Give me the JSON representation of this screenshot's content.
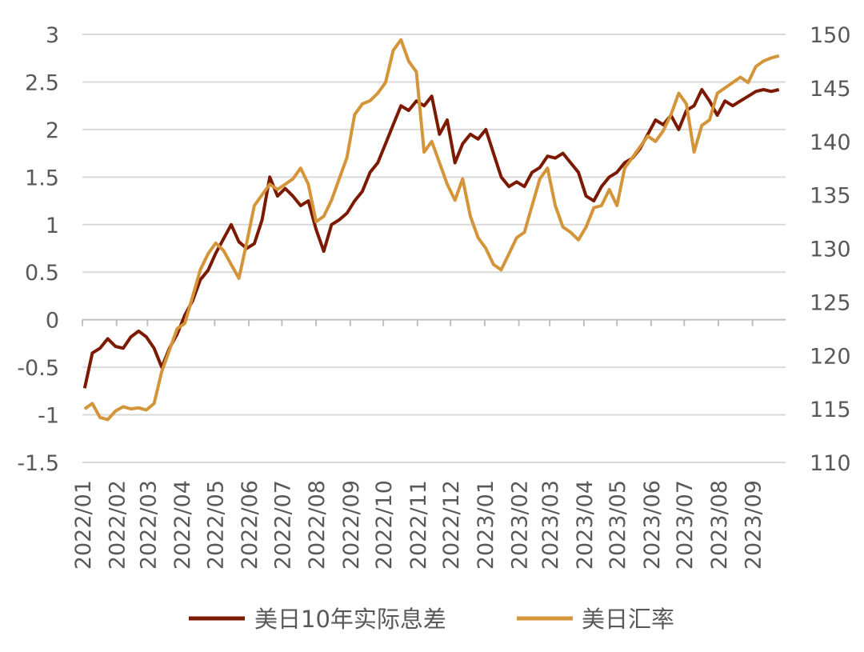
{
  "chart_data": {
    "type": "line",
    "title": "",
    "xlabel": "",
    "ylabel": "",
    "y2label": "",
    "x_ticks": [
      "2022/01",
      "2022/02",
      "2022/03",
      "2022/04",
      "2022/05",
      "2022/06",
      "2022/07",
      "2022/08",
      "2022/09",
      "2022/10",
      "2022/11",
      "2022/12",
      "2023/01",
      "2023/02",
      "2023/03",
      "2023/04",
      "2023/05",
      "2023/06",
      "2023/07",
      "2023/08",
      "2023/09"
    ],
    "y_left_ticks": [
      "3",
      "2.5",
      "2",
      "1.5",
      "1",
      "0.5",
      "0",
      "-0.5",
      "-1",
      "-1.5"
    ],
    "y_right_ticks": [
      "150",
      "145",
      "140",
      "135",
      "130",
      "125",
      "120",
      "115",
      "110"
    ],
    "ylim_left": [
      -1.5,
      3
    ],
    "ylim_right": [
      110,
      150
    ],
    "grid": true,
    "legend_position": "bottom",
    "series": [
      {
        "name": "美日10年实际息差",
        "axis": "left",
        "color": "#7B1A00",
        "x": [
          "2022-01-03",
          "2022-01-10",
          "2022-01-17",
          "2022-01-24",
          "2022-01-31",
          "2022-02-07",
          "2022-02-14",
          "2022-02-21",
          "2022-02-28",
          "2022-03-07",
          "2022-03-14",
          "2022-03-21",
          "2022-03-28",
          "2022-04-04",
          "2022-04-11",
          "2022-04-18",
          "2022-04-25",
          "2022-05-02",
          "2022-05-09",
          "2022-05-16",
          "2022-05-23",
          "2022-05-30",
          "2022-06-06",
          "2022-06-13",
          "2022-06-20",
          "2022-06-27",
          "2022-07-04",
          "2022-07-11",
          "2022-07-18",
          "2022-07-25",
          "2022-08-01",
          "2022-08-08",
          "2022-08-15",
          "2022-08-22",
          "2022-08-29",
          "2022-09-05",
          "2022-09-12",
          "2022-09-19",
          "2022-09-26",
          "2022-10-03",
          "2022-10-10",
          "2022-10-17",
          "2022-10-24",
          "2022-10-31",
          "2022-11-07",
          "2022-11-14",
          "2022-11-21",
          "2022-11-28",
          "2022-12-05",
          "2022-12-12",
          "2022-12-19",
          "2022-12-26",
          "2023-01-02",
          "2023-01-09",
          "2023-01-16",
          "2023-01-23",
          "2023-01-30",
          "2023-02-06",
          "2023-02-13",
          "2023-02-20",
          "2023-02-27",
          "2023-03-06",
          "2023-03-13",
          "2023-03-20",
          "2023-03-27",
          "2023-04-03",
          "2023-04-10",
          "2023-04-17",
          "2023-04-24",
          "2023-05-01",
          "2023-05-08",
          "2023-05-15",
          "2023-05-22",
          "2023-05-29",
          "2023-06-05",
          "2023-06-12",
          "2023-06-19",
          "2023-06-26",
          "2023-07-03",
          "2023-07-10",
          "2023-07-17",
          "2023-07-24",
          "2023-07-31",
          "2023-08-07",
          "2023-08-14",
          "2023-08-21",
          "2023-08-28",
          "2023-09-04",
          "2023-09-11",
          "2023-09-18",
          "2023-09-25"
        ],
        "values": [
          -0.72,
          -0.35,
          -0.3,
          -0.2,
          -0.28,
          -0.3,
          -0.18,
          -0.12,
          -0.18,
          -0.3,
          -0.5,
          -0.3,
          -0.15,
          0.05,
          0.2,
          0.42,
          0.52,
          0.7,
          0.85,
          1.0,
          0.82,
          0.75,
          0.8,
          1.05,
          1.5,
          1.3,
          1.38,
          1.3,
          1.2,
          1.25,
          0.95,
          0.72,
          1.0,
          1.05,
          1.12,
          1.25,
          1.35,
          1.55,
          1.65,
          1.85,
          2.05,
          2.25,
          2.2,
          2.3,
          2.25,
          2.35,
          1.95,
          2.1,
          1.65,
          1.85,
          1.95,
          1.9,
          2.0,
          1.75,
          1.5,
          1.4,
          1.45,
          1.4,
          1.55,
          1.6,
          1.72,
          1.7,
          1.75,
          1.65,
          1.55,
          1.3,
          1.25,
          1.4,
          1.5,
          1.55,
          1.65,
          1.7,
          1.8,
          1.95,
          2.1,
          2.05,
          2.15,
          2.0,
          2.2,
          2.25,
          2.42,
          2.3,
          2.15,
          2.3,
          2.25,
          2.3,
          2.35,
          2.4,
          2.42,
          2.4,
          2.42
        ]
      },
      {
        "name": "美日汇率",
        "axis": "right",
        "color": "#D4943A",
        "x": [
          "2022-01-03",
          "2022-01-10",
          "2022-01-17",
          "2022-01-24",
          "2022-01-31",
          "2022-02-07",
          "2022-02-14",
          "2022-02-21",
          "2022-02-28",
          "2022-03-07",
          "2022-03-14",
          "2022-03-21",
          "2022-03-28",
          "2022-04-04",
          "2022-04-11",
          "2022-04-18",
          "2022-04-25",
          "2022-05-02",
          "2022-05-09",
          "2022-05-16",
          "2022-05-23",
          "2022-05-30",
          "2022-06-06",
          "2022-06-13",
          "2022-06-20",
          "2022-06-27",
          "2022-07-04",
          "2022-07-11",
          "2022-07-18",
          "2022-07-25",
          "2022-08-01",
          "2022-08-08",
          "2022-08-15",
          "2022-08-22",
          "2022-08-29",
          "2022-09-05",
          "2022-09-12",
          "2022-09-19",
          "2022-09-26",
          "2022-10-03",
          "2022-10-10",
          "2022-10-17",
          "2022-10-24",
          "2022-10-31",
          "2022-11-07",
          "2022-11-14",
          "2022-11-21",
          "2022-11-28",
          "2022-12-05",
          "2022-12-12",
          "2022-12-19",
          "2022-12-26",
          "2023-01-02",
          "2023-01-09",
          "2023-01-16",
          "2023-01-23",
          "2023-01-30",
          "2023-02-06",
          "2023-02-13",
          "2023-02-20",
          "2023-02-27",
          "2023-03-06",
          "2023-03-13",
          "2023-03-20",
          "2023-03-27",
          "2023-04-03",
          "2023-04-10",
          "2023-04-17",
          "2023-04-24",
          "2023-05-01",
          "2023-05-08",
          "2023-05-15",
          "2023-05-22",
          "2023-05-29",
          "2023-06-05",
          "2023-06-12",
          "2023-06-19",
          "2023-06-26",
          "2023-07-03",
          "2023-07-10",
          "2023-07-17",
          "2023-07-24",
          "2023-07-31",
          "2023-08-07",
          "2023-08-14",
          "2023-08-21",
          "2023-08-28",
          "2023-09-04",
          "2023-09-11",
          "2023-09-18",
          "2023-09-25"
        ],
        "values": [
          115.0,
          115.5,
          114.2,
          114.0,
          114.8,
          115.2,
          115.0,
          115.1,
          114.9,
          115.5,
          118.5,
          120.5,
          122.5,
          123.0,
          125.5,
          128.0,
          129.5,
          130.5,
          129.8,
          128.5,
          127.2,
          130.5,
          134.0,
          135.0,
          136.0,
          135.5,
          136.0,
          136.5,
          137.5,
          136.0,
          132.5,
          133.0,
          134.5,
          136.5,
          138.5,
          142.5,
          143.5,
          143.8,
          144.5,
          145.5,
          148.5,
          149.5,
          147.5,
          146.5,
          139.0,
          140.0,
          138.0,
          136.0,
          134.5,
          136.5,
          133.0,
          131.0,
          130.0,
          128.5,
          128.0,
          129.5,
          131.0,
          131.5,
          134.0,
          136.5,
          137.5,
          134.0,
          132.0,
          131.5,
          130.8,
          132.0,
          133.8,
          134.0,
          135.5,
          134.0,
          137.5,
          138.5,
          139.5,
          140.5,
          140.0,
          141.0,
          142.5,
          144.5,
          143.5,
          139.0,
          141.5,
          142.0,
          144.5,
          145.0,
          145.5,
          146.0,
          145.5,
          147.0,
          147.5,
          147.8,
          148.0
        ]
      }
    ]
  }
}
